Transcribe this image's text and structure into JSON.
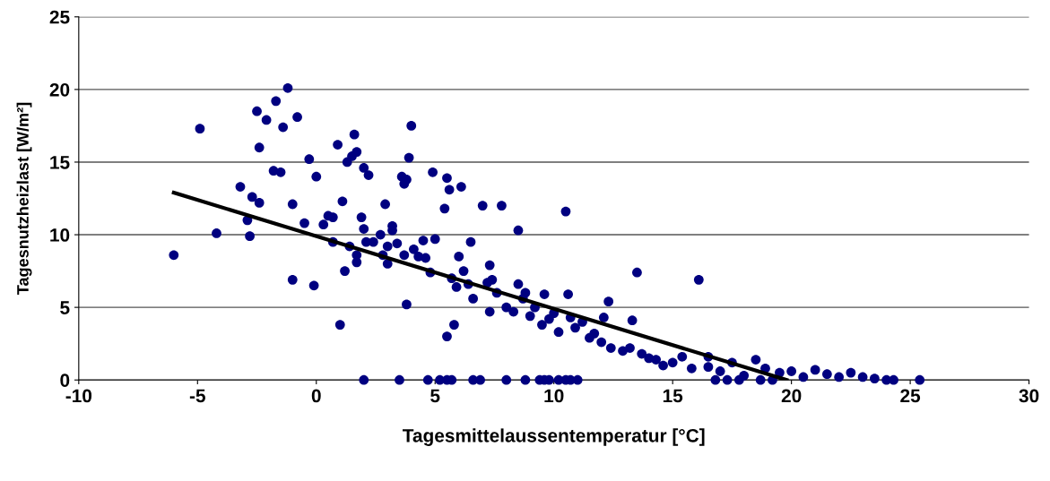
{
  "chart_data": {
    "type": "scatter",
    "xlabel": "Tagesmittelaussentemperatur [°C]",
    "ylabel": "Tagesnutzheizlast [W/m²]",
    "xlim": [
      -10,
      30
    ],
    "xticks": [
      -10,
      -5,
      0,
      5,
      10,
      15,
      20,
      25,
      30
    ],
    "ylim": [
      0,
      25
    ],
    "yticks": [
      0,
      5,
      10,
      15,
      20,
      25
    ],
    "grid": "y",
    "legend": false,
    "series": [
      {
        "color": "#000080",
        "marker": "circle",
        "x": [
          -6.0,
          -4.9,
          -4.2,
          -3.2,
          -2.9,
          -2.8,
          -2.7,
          -2.5,
          -2.4,
          -2.4,
          -2.1,
          -1.8,
          -1.7,
          -1.5,
          -1.4,
          -1.2,
          -1.0,
          -0.8,
          -1.0,
          -0.5,
          -0.3,
          -0.1,
          0.0,
          0.3,
          0.5,
          0.7,
          0.7,
          0.9,
          1.0,
          1.1,
          1.2,
          1.3,
          1.4,
          1.5,
          1.6,
          1.7,
          1.7,
          1.7,
          1.9,
          2.0,
          2.1,
          2.2,
          2.0,
          2.4,
          2.7,
          2.8,
          2.9,
          3.0,
          3.0,
          3.2,
          3.2,
          3.4,
          3.6,
          3.7,
          3.8,
          3.7,
          3.8,
          3.9,
          4.0,
          4.1,
          4.3,
          4.5,
          4.9,
          4.6,
          4.8,
          5.0,
          5.4,
          5.5,
          5.6,
          5.5,
          5.7,
          5.8,
          5.9,
          6.0,
          6.1,
          6.2,
          6.5,
          6.4,
          6.6,
          7.0,
          7.2,
          7.3,
          7.3,
          7.4,
          7.6,
          7.8,
          8.0,
          8.5,
          8.5,
          8.3,
          8.7,
          9.0,
          8.8,
          9.2,
          9.5,
          9.6,
          9.8,
          10.0,
          10.2,
          10.5,
          10.6,
          10.7,
          10.9,
          11.2,
          11.5,
          11.7,
          12.0,
          12.1,
          12.3,
          12.4,
          12.9,
          13.2,
          13.3,
          13.5,
          13.7,
          14.0,
          14.3,
          14.6,
          15.0,
          15.4,
          15.8,
          16.1,
          16.5,
          16.5,
          17.0,
          17.5,
          18.0,
          18.5,
          18.9,
          19.5,
          20.0,
          20.5,
          21.0,
          21.5,
          22.0,
          22.5,
          23.0,
          23.5,
          24.0,
          24.3,
          25.4,
          2.0,
          3.5,
          4.7,
          5.2,
          5.5,
          5.7,
          6.6,
          6.9,
          8.0,
          8.8,
          9.4,
          9.6,
          9.8,
          10.2,
          10.5,
          10.7,
          11.0,
          16.8,
          17.3,
          17.8,
          18.7,
          19.2
        ],
        "values": [
          8.6,
          17.3,
          10.1,
          13.3,
          11.0,
          9.9,
          12.6,
          18.5,
          16.0,
          12.2,
          17.9,
          14.4,
          19.2,
          14.3,
          17.4,
          20.1,
          12.1,
          18.1,
          6.9,
          10.8,
          15.2,
          6.5,
          14.0,
          10.7,
          11.3,
          9.5,
          11.2,
          16.2,
          3.8,
          12.3,
          7.5,
          15.0,
          9.2,
          15.4,
          16.9,
          15.7,
          8.6,
          8.1,
          11.2,
          14.6,
          9.5,
          14.1,
          10.4,
          9.5,
          10.0,
          8.6,
          12.1,
          8.0,
          9.2,
          10.6,
          10.3,
          9.4,
          14.0,
          13.5,
          13.8,
          8.6,
          5.2,
          15.3,
          17.5,
          9.0,
          8.5,
          9.6,
          14.3,
          8.4,
          7.4,
          9.7,
          11.8,
          13.9,
          13.1,
          3.0,
          7.0,
          3.8,
          6.4,
          8.5,
          13.3,
          7.5,
          9.5,
          6.6,
          5.6,
          12.0,
          6.7,
          7.9,
          4.7,
          6.9,
          6.0,
          12.0,
          5.0,
          10.3,
          6.6,
          4.7,
          5.6,
          4.4,
          6.0,
          5.0,
          3.8,
          5.9,
          4.2,
          4.6,
          3.3,
          11.6,
          5.9,
          4.3,
          3.6,
          4.0,
          2.9,
          3.2,
          2.6,
          4.3,
          5.4,
          2.2,
          2.0,
          2.2,
          4.1,
          7.4,
          1.8,
          1.5,
          1.4,
          1.0,
          1.2,
          1.6,
          0.8,
          6.9,
          0.9,
          1.6,
          0.6,
          1.2,
          0.3,
          1.4,
          0.8,
          0.5,
          0.6,
          0.2,
          0.7,
          0.4,
          0.2,
          0.5,
          0.2,
          0.1,
          0,
          0,
          0,
          0,
          0,
          0,
          0,
          0,
          0,
          0,
          0,
          0,
          0,
          0,
          0,
          0,
          0,
          0,
          0,
          0,
          0,
          0,
          0,
          0,
          0
        ]
      },
      {
        "type": "line",
        "color": "#000000",
        "marker": "none",
        "line_style": "solid",
        "x": [
          -6.0,
          19.8
        ],
        "values": [
          12.9,
          0
        ]
      }
    ]
  }
}
